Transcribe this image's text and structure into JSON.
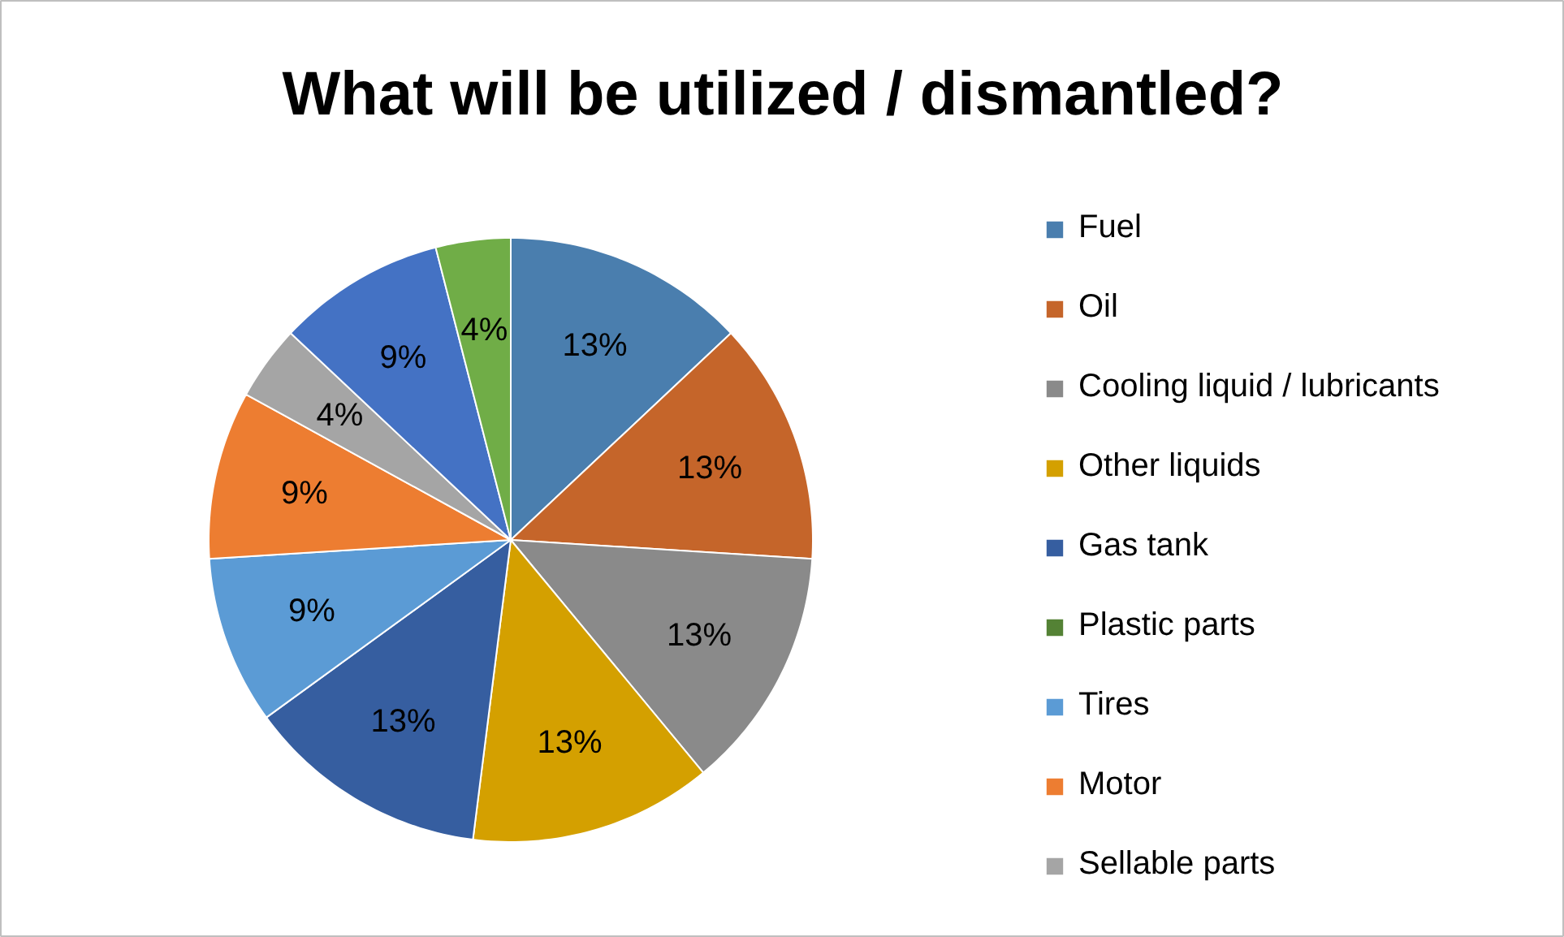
{
  "chart_data": {
    "type": "pie",
    "title": "What will be utilized / dismantled?",
    "categories": [
      "Fuel",
      "Oil",
      "Cooling liquid / lubricants",
      "Other liquids",
      "Gas tank",
      "Plastic parts",
      "Tires",
      "Motor",
      "Sellable parts",
      null,
      null
    ],
    "values": [
      13,
      13,
      13,
      13,
      13,
      0,
      9,
      9,
      4,
      9,
      4
    ],
    "value_labels": [
      "13%",
      "13%",
      "13%",
      "13%",
      "13%",
      null,
      "9%",
      "9%",
      "4%",
      "9%",
      "4%"
    ],
    "colors": [
      "#4a7eae",
      "#c5652a",
      "#8a8a8a",
      "#d4a000",
      "#365ea0",
      "#548235",
      "#5b9bd5",
      "#ed7d31",
      "#a5a5a5",
      "#4472c4",
      "#70ad47"
    ],
    "legend": "right"
  }
}
